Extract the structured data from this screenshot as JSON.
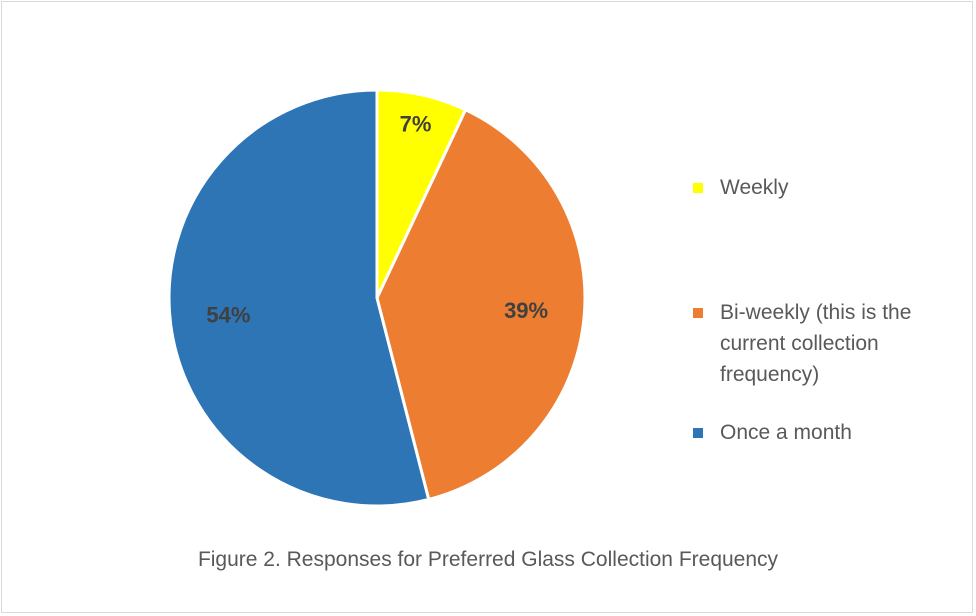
{
  "chart_data": {
    "type": "pie",
    "title": "Figure 2. Responses for Preferred Glass Collection Frequency",
    "categories": [
      "Weekly",
      "Bi-weekly (this is the current collection frequency)",
      "Once a month"
    ],
    "values": [
      7,
      39,
      54
    ],
    "value_labels": [
      "7%",
      "39%",
      "54%"
    ],
    "colors": [
      "#FFFF00",
      "#ED7D31",
      "#2E75B6"
    ],
    "legend": "right"
  }
}
